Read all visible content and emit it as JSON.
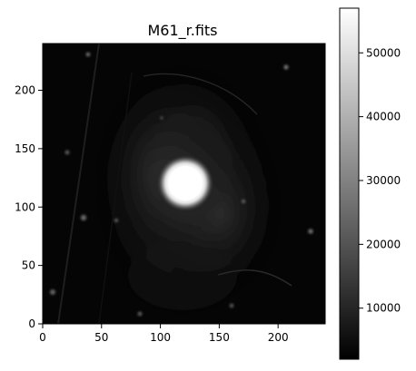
{
  "figure": {
    "title": "M61_r.fits"
  },
  "image_axes": {
    "x_ticks": [
      {
        "value": 0,
        "label": "0"
      },
      {
        "value": 50,
        "label": "50"
      },
      {
        "value": 100,
        "label": "100"
      },
      {
        "value": 150,
        "label": "150"
      },
      {
        "value": 200,
        "label": "200"
      }
    ],
    "y_ticks": [
      {
        "value": 0,
        "label": "0"
      },
      {
        "value": 50,
        "label": "50"
      },
      {
        "value": 100,
        "label": "100"
      },
      {
        "value": 150,
        "label": "150"
      },
      {
        "value": 200,
        "label": "200"
      }
    ],
    "xlim": [
      0,
      240
    ],
    "ylim": [
      0,
      240
    ]
  },
  "colorbar": {
    "vlim": [
      2000,
      57000
    ],
    "ticks": [
      {
        "value": 10000,
        "label": "10000"
      },
      {
        "value": 20000,
        "label": "20000"
      },
      {
        "value": 30000,
        "label": "30000"
      },
      {
        "value": 40000,
        "label": "40000"
      },
      {
        "value": 50000,
        "label": "50000"
      }
    ],
    "colormap": "gray"
  },
  "colors": {
    "background": "#ffffff",
    "image_background": "#050505",
    "nucleus": "#ffffff",
    "axis": "#000000"
  }
}
